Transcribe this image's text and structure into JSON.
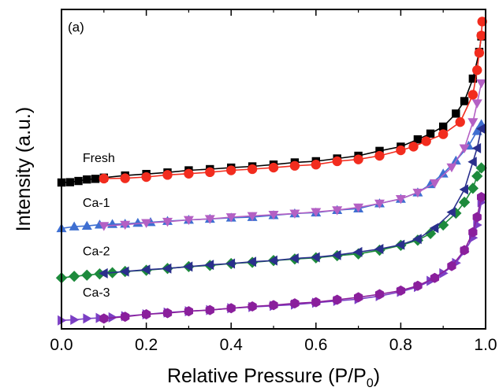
{
  "chart_data": {
    "type": "scatter",
    "panel_label": "(a)",
    "xlabel": "Relative Pressure (P/P",
    "xlabel_sub": "0",
    "xlabel_end": ")",
    "ylabel": "Intensity (a.u.)",
    "xlim": [
      0.0,
      1.0
    ],
    "ylim": [
      0,
      100
    ],
    "x_ticks": [
      "0.0",
      "0.2",
      "0.4",
      "0.6",
      "0.8",
      "1.0"
    ],
    "y_ticks_shown": false,
    "series": [
      {
        "name": "Fresh",
        "branch": "adsorption",
        "marker": "square",
        "color": "#000000",
        "x": [
          0.0,
          0.02,
          0.04,
          0.06,
          0.08,
          0.1,
          0.15,
          0.2,
          0.25,
          0.3,
          0.35,
          0.4,
          0.45,
          0.5,
          0.55,
          0.6,
          0.65,
          0.7,
          0.75,
          0.8,
          0.84,
          0.87,
          0.9,
          0.93,
          0.95,
          0.97,
          0.985,
          0.99
        ],
        "y": [
          45.6,
          45.7,
          46.1,
          46.6,
          46.8,
          47.2,
          47.9,
          48.4,
          48.9,
          49.6,
          50.0,
          50.5,
          50.9,
          51.5,
          52.2,
          52.6,
          53.5,
          54.4,
          56.0,
          57.4,
          59.8,
          61.7,
          64.0,
          68.3,
          72.4,
          79.8,
          88.6,
          93.7
        ]
      },
      {
        "name": "Fresh",
        "branch": "desorption",
        "marker": "circle",
        "color": "#f22c1e",
        "x": [
          0.1,
          0.15,
          0.2,
          0.25,
          0.3,
          0.35,
          0.4,
          0.45,
          0.5,
          0.55,
          0.6,
          0.65,
          0.7,
          0.75,
          0.8,
          0.83,
          0.86,
          0.9,
          0.94,
          0.97,
          0.98,
          0.985,
          0.99,
          0.992
        ],
        "y": [
          46.9,
          47.0,
          47.4,
          48.1,
          48.5,
          49.0,
          49.6,
          50.0,
          50.5,
          51.1,
          51.5,
          52.6,
          53.2,
          54.4,
          56.2,
          57.4,
          59.2,
          61.5,
          65.5,
          74.5,
          82.6,
          88.3,
          94.0,
          98.6
        ]
      },
      {
        "name": "Ca-1",
        "branch": "adsorption",
        "marker": "triangle-up",
        "color": "#3f6fd1",
        "x": [
          0.0,
          0.03,
          0.06,
          0.09,
          0.12,
          0.15,
          0.18,
          0.21,
          0.25,
          0.3,
          0.35,
          0.4,
          0.45,
          0.5,
          0.55,
          0.6,
          0.65,
          0.7,
          0.75,
          0.8,
          0.84,
          0.87,
          0.9,
          0.93,
          0.96,
          0.98,
          0.99
        ],
        "y": [
          30.5,
          31.1,
          31.3,
          31.7,
          31.9,
          32.0,
          32.3,
          32.5,
          32.9,
          33.3,
          33.6,
          34.0,
          34.2,
          34.8,
          35.4,
          35.7,
          36.5,
          37.0,
          38.7,
          40.2,
          42.3,
          45.0,
          48.5,
          52.8,
          57.7,
          62.5,
          64.8
        ]
      },
      {
        "name": "Ca-1",
        "branch": "desorption",
        "marker": "triangle-down",
        "color": "#b460c4",
        "x": [
          0.1,
          0.15,
          0.2,
          0.25,
          0.3,
          0.35,
          0.4,
          0.45,
          0.5,
          0.55,
          0.6,
          0.65,
          0.7,
          0.75,
          0.8,
          0.84,
          0.88,
          0.92,
          0.95,
          0.97,
          0.98,
          0.99
        ],
        "y": [
          31.3,
          31.7,
          32.3,
          32.7,
          33.3,
          33.6,
          34.2,
          34.6,
          35.0,
          35.4,
          35.9,
          36.5,
          37.4,
          38.7,
          40.2,
          42.3,
          45.4,
          50.6,
          56.9,
          65.5,
          71.7,
          78.3
        ]
      },
      {
        "name": "Ca-2",
        "branch": "adsorption",
        "marker": "diamond",
        "color": "#1d8a3c",
        "x": [
          0.0,
          0.03,
          0.06,
          0.09,
          0.12,
          0.15,
          0.2,
          0.25,
          0.3,
          0.35,
          0.4,
          0.45,
          0.5,
          0.55,
          0.6,
          0.65,
          0.7,
          0.75,
          0.8,
          0.84,
          0.87,
          0.9,
          0.93,
          0.95,
          0.97,
          0.98,
          0.99
        ],
        "y": [
          14.2,
          14.7,
          15.1,
          15.5,
          15.9,
          16.3,
          16.7,
          17.3,
          17.9,
          18.3,
          18.9,
          19.3,
          19.9,
          20.4,
          20.8,
          21.5,
          22.1,
          23.3,
          24.9,
          26.6,
          28.8,
          31.6,
          35.5,
          39.1,
          43.7,
          47.7,
          50.4
        ]
      },
      {
        "name": "Ca-2",
        "branch": "desorption",
        "marker": "triangle-left",
        "color": "#2a2f8c",
        "x": [
          0.1,
          0.15,
          0.2,
          0.25,
          0.3,
          0.35,
          0.4,
          0.45,
          0.5,
          0.55,
          0.6,
          0.65,
          0.7,
          0.75,
          0.8,
          0.84,
          0.88,
          0.92,
          0.95,
          0.97,
          0.98,
          0.99
        ],
        "y": [
          15.7,
          16.3,
          16.9,
          17.3,
          17.9,
          18.5,
          18.9,
          19.5,
          19.9,
          20.6,
          21.0,
          21.7,
          22.7,
          23.7,
          25.1,
          27.0,
          30.6,
          35.8,
          43.3,
          52.4,
          56.9,
          63.3
        ]
      },
      {
        "name": "Ca-3",
        "branch": "adsorption",
        "marker": "triangle-right",
        "color": "#7b3fc4",
        "x": [
          0.0,
          0.03,
          0.06,
          0.09,
          0.12,
          0.15,
          0.2,
          0.25,
          0.3,
          0.35,
          0.4,
          0.45,
          0.5,
          0.55,
          0.6,
          0.65,
          0.7,
          0.75,
          0.8,
          0.84,
          0.87,
          0.9,
          0.93,
          0.95,
          0.97,
          0.98,
          0.99
        ],
        "y": [
          0.2,
          0.4,
          0.8,
          1.0,
          1.2,
          1.6,
          2.2,
          2.8,
          3.2,
          3.6,
          4.2,
          4.6,
          5.0,
          5.4,
          6.0,
          6.6,
          7.2,
          8.2,
          9.6,
          11.2,
          13.2,
          15.7,
          19.1,
          22.9,
          27.4,
          31.6,
          39.1
        ]
      },
      {
        "name": "Ca-3",
        "branch": "desorption",
        "marker": "hexagon",
        "color": "#8a1f9c",
        "x": [
          0.1,
          0.15,
          0.2,
          0.25,
          0.3,
          0.35,
          0.4,
          0.45,
          0.5,
          0.55,
          0.6,
          0.65,
          0.7,
          0.75,
          0.8,
          0.84,
          0.88,
          0.92,
          0.95,
          0.97,
          0.98,
          0.99
        ],
        "y": [
          0.8,
          1.4,
          2.2,
          2.6,
          3.2,
          3.6,
          4.2,
          4.8,
          5.2,
          5.8,
          6.2,
          7.0,
          7.8,
          8.8,
          10.0,
          11.6,
          14.2,
          18.1,
          23.3,
          29.2,
          34.2,
          40.8
        ]
      }
    ],
    "series_labels": [
      {
        "text": "Fresh",
        "x": 0.05,
        "y": 52.3
      },
      {
        "text": "Ca-1",
        "x": 0.05,
        "y": 37.6
      },
      {
        "text": "Ca-2",
        "x": 0.05,
        "y": 21.6
      },
      {
        "text": "Ca-3",
        "x": 0.05,
        "y": 8.0
      }
    ]
  }
}
